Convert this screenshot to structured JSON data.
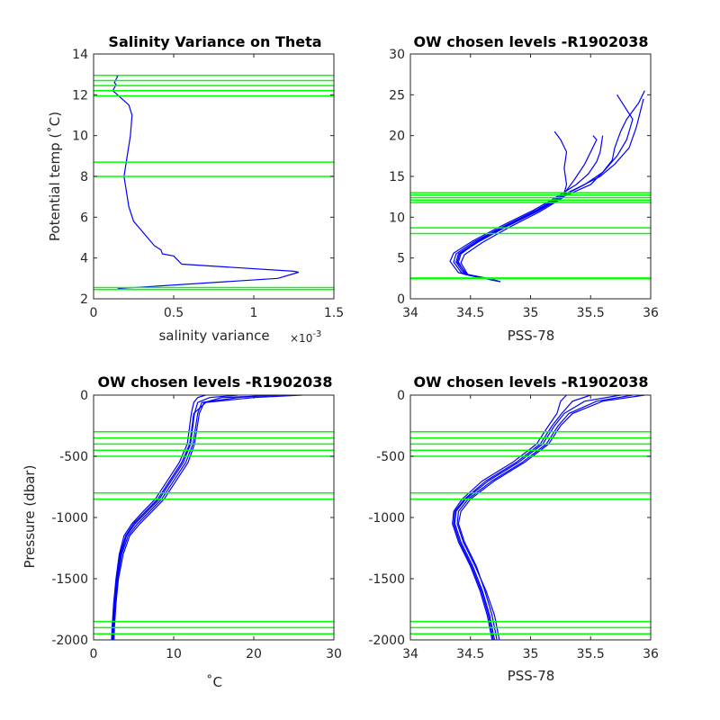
{
  "colors": {
    "profile": "#0000ff",
    "levels": "#00ff00",
    "axis": "#262626"
  },
  "chart_data": [
    {
      "id": "p1",
      "type": "line",
      "title": "Salinity Variance on Theta",
      "xlabel": "salinity variance",
      "x_exponent": "×10",
      "x_exponent_power": "-3",
      "ylabel": "Potential temp (˚C)",
      "xlim": [
        0,
        1.5
      ],
      "ylim": [
        2,
        14
      ],
      "xticks": [
        0,
        0.5,
        1,
        1.5
      ],
      "xticklabels": [
        "0",
        "0.5",
        "1",
        "1.5"
      ],
      "yticks": [
        2,
        4,
        6,
        8,
        10,
        12,
        14
      ],
      "yticklabels": [
        "2",
        "4",
        "6",
        "8",
        "10",
        "12",
        "14"
      ],
      "levels": [
        12.95,
        12.7,
        12.45,
        12.2,
        11.95,
        8.7,
        8.0,
        2.55,
        2.45
      ],
      "series": [
        {
          "x": [
            0.15,
            1.15,
            1.28,
            1.25,
            0.55,
            0.5,
            0.43,
            0.42,
            0.38,
            0.25,
            0.22,
            0.2,
            0.19,
            0.23,
            0.24,
            0.22,
            0.12,
            0.14,
            0.13,
            0.15,
            0.14
          ],
          "y": [
            2.5,
            3.0,
            3.3,
            3.35,
            3.7,
            4.1,
            4.2,
            4.4,
            4.6,
            5.8,
            6.5,
            7.5,
            8.0,
            10.0,
            11.0,
            11.5,
            12.2,
            12.5,
            12.6,
            12.9,
            12.95
          ]
        }
      ]
    },
    {
      "id": "p2",
      "type": "line",
      "title": "OW chosen levels -R1902038",
      "xlabel": "PSS-78",
      "ylabel": "",
      "xlim": [
        34,
        36
      ],
      "ylim": [
        0,
        30
      ],
      "xticks": [
        34,
        34.5,
        35,
        35.5,
        36
      ],
      "xticklabels": [
        "34",
        "34.5",
        "35",
        "35.5",
        "36"
      ],
      "yticks": [
        0,
        5,
        10,
        15,
        20,
        25,
        30
      ],
      "yticklabels": [
        "0",
        "5",
        "10",
        "15",
        "20",
        "25",
        "30"
      ],
      "levels": [
        13.0,
        12.7,
        12.4,
        12.1,
        11.8,
        8.7,
        8.0,
        2.55,
        2.45
      ],
      "series": [
        {
          "x": [
            34.72,
            34.45,
            34.38,
            34.4,
            34.55,
            34.8,
            35.05,
            35.25,
            35.45,
            35.6,
            35.68,
            35.7,
            35.75,
            35.8,
            35.9,
            35.95
          ],
          "y": [
            2.2,
            3.0,
            4.5,
            5.5,
            7.0,
            9.0,
            10.8,
            12.5,
            14.0,
            15.5,
            17.0,
            18.5,
            20.5,
            22.0,
            24.0,
            25.5
          ]
        },
        {
          "x": [
            34.7,
            34.4,
            34.33,
            34.36,
            34.52,
            34.78,
            35.03,
            35.23,
            35.38,
            35.48,
            35.55,
            35.58,
            35.6
          ],
          "y": [
            2.3,
            3.2,
            4.6,
            5.6,
            7.1,
            9.1,
            10.9,
            12.6,
            14.0,
            15.3,
            16.8,
            18.0,
            20.0
          ]
        },
        {
          "x": [
            34.75,
            34.48,
            34.42,
            34.45,
            34.6,
            34.84,
            35.08,
            35.27,
            35.3,
            35.28,
            35.3,
            35.25,
            35.2
          ],
          "y": [
            2.1,
            2.9,
            4.4,
            5.4,
            6.9,
            8.9,
            10.7,
            12.4,
            14.0,
            16.0,
            18.0,
            19.5,
            20.5
          ]
        },
        {
          "x": [
            34.68,
            34.43,
            34.36,
            34.38,
            34.53,
            34.79,
            35.04,
            35.24,
            35.42,
            35.58,
            35.7,
            35.82,
            35.88,
            35.94
          ],
          "y": [
            2.4,
            3.1,
            4.5,
            5.5,
            7.0,
            9.0,
            10.8,
            12.5,
            13.8,
            15.0,
            16.5,
            18.5,
            21.0,
            24.5
          ]
        },
        {
          "x": [
            34.71,
            34.46,
            34.4,
            34.42,
            34.56,
            34.81,
            35.06,
            35.26,
            35.36,
            35.45,
            35.5,
            35.55,
            35.52
          ],
          "y": [
            2.2,
            3.0,
            4.5,
            5.5,
            7.0,
            9.0,
            10.8,
            12.5,
            14.5,
            16.5,
            18.0,
            19.5,
            20.0
          ]
        },
        {
          "x": [
            34.73,
            34.47,
            34.39,
            34.41,
            34.57,
            34.82,
            35.07,
            35.27,
            35.5,
            35.62,
            35.72,
            35.8,
            35.85,
            35.72
          ],
          "y": [
            2.2,
            3.0,
            4.5,
            5.5,
            7.0,
            9.0,
            10.8,
            12.5,
            14.0,
            15.8,
            17.5,
            19.5,
            22.0,
            25.0
          ]
        }
      ]
    },
    {
      "id": "p3",
      "type": "line",
      "title": "OW chosen levels -R1902038",
      "xlabel": "˚C",
      "ylabel": "Pressure (dbar)",
      "xlim": [
        0,
        30
      ],
      "ylim": [
        -2000,
        0
      ],
      "xticks": [
        0,
        10,
        20,
        30
      ],
      "xticklabels": [
        "0",
        "10",
        "20",
        "30"
      ],
      "yticks": [
        -2000,
        -1500,
        -1000,
        -500,
        0
      ],
      "yticklabels": [
        "-2000",
        "-1500",
        "-1000",
        "-500",
        "0"
      ],
      "levels": [
        -300,
        -350,
        -400,
        -450,
        -500,
        -800,
        -850,
        -1850,
        -1900,
        -1950
      ],
      "series": [
        {
          "x": [
            26,
            20,
            14,
            12.5,
            12.0,
            11.0,
            9.5,
            8.0,
            6.5,
            5.0,
            4.0,
            3.3,
            2.9,
            2.6,
            2.4,
            2.35
          ],
          "y": [
            0,
            -20,
            -60,
            -150,
            -400,
            -550,
            -700,
            -850,
            -950,
            -1050,
            -1150,
            -1300,
            -1500,
            -1700,
            -1900,
            -2000
          ]
        },
        {
          "x": [
            22,
            18,
            13.5,
            13.0,
            12.4,
            11.5,
            10.0,
            8.5,
            7.0,
            5.5,
            4.3,
            3.5,
            3.0,
            2.7,
            2.5,
            2.45
          ],
          "y": [
            0,
            -20,
            -60,
            -150,
            -400,
            -550,
            -700,
            -850,
            -950,
            -1050,
            -1150,
            -1300,
            -1500,
            -1700,
            -1900,
            -2000
          ]
        },
        {
          "x": [
            14,
            13,
            12.5,
            12.2,
            11.7,
            10.7,
            9.2,
            7.7,
            6.2,
            4.8,
            3.8,
            3.2,
            2.8,
            2.5,
            2.3,
            2.25
          ],
          "y": [
            0,
            -20,
            -60,
            -150,
            -400,
            -550,
            -700,
            -850,
            -950,
            -1050,
            -1150,
            -1300,
            -1500,
            -1700,
            -1900,
            -2000
          ]
        },
        {
          "x": [
            24,
            16,
            13.8,
            13.2,
            12.6,
            11.8,
            10.3,
            8.8,
            7.3,
            5.8,
            4.5,
            3.7,
            3.1,
            2.8,
            2.6,
            2.55
          ],
          "y": [
            0,
            -20,
            -60,
            -150,
            -400,
            -550,
            -700,
            -850,
            -950,
            -1050,
            -1150,
            -1300,
            -1500,
            -1700,
            -1900,
            -2000
          ]
        },
        {
          "x": [
            18,
            14.5,
            13,
            12.6,
            12.1,
            11.2,
            9.7,
            8.2,
            6.7,
            5.2,
            4.1,
            3.4,
            2.9,
            2.65,
            2.45,
            2.4
          ],
          "y": [
            0,
            -20,
            -60,
            -150,
            -400,
            -550,
            -700,
            -850,
            -950,
            -1050,
            -1150,
            -1300,
            -1500,
            -1700,
            -1900,
            -2000
          ]
        }
      ]
    },
    {
      "id": "p4",
      "type": "line",
      "title": "OW chosen levels -R1902038",
      "xlabel": "PSS-78",
      "ylabel": "",
      "xlim": [
        34,
        36
      ],
      "ylim": [
        -2000,
        0
      ],
      "xticks": [
        34,
        34.5,
        35,
        35.5,
        36
      ],
      "xticklabels": [
        "34",
        "34.5",
        "35",
        "35.5",
        "36"
      ],
      "yticks": [
        -2000,
        -1500,
        -1000,
        -500,
        0
      ],
      "yticklabels": [
        "-2000",
        "-1500",
        "-1000",
        "-500",
        "0"
      ],
      "levels": [
        -300,
        -350,
        -400,
        -450,
        -500,
        -800,
        -850,
        -1850,
        -1900,
        -1950
      ],
      "series": [
        {
          "x": [
            35.95,
            35.6,
            35.35,
            35.25,
            35.15,
            34.95,
            34.7,
            34.5,
            34.42,
            34.4,
            34.45,
            34.55,
            34.62,
            34.68,
            34.72
          ],
          "y": [
            0,
            -50,
            -150,
            -250,
            -400,
            -550,
            -700,
            -850,
            -950,
            -1050,
            -1200,
            -1400,
            -1600,
            -1800,
            -2000
          ]
        },
        {
          "x": [
            35.75,
            35.45,
            35.28,
            35.2,
            35.1,
            34.9,
            34.65,
            34.46,
            34.38,
            34.37,
            34.42,
            34.52,
            34.6,
            34.66,
            34.7
          ],
          "y": [
            0,
            -50,
            -150,
            -250,
            -400,
            -550,
            -700,
            -850,
            -950,
            -1050,
            -1200,
            -1400,
            -1600,
            -1800,
            -2000
          ]
        },
        {
          "x": [
            35.3,
            35.25,
            35.22,
            35.15,
            35.05,
            34.85,
            34.6,
            34.43,
            34.36,
            34.35,
            34.4,
            34.5,
            34.58,
            34.64,
            34.68
          ],
          "y": [
            0,
            -50,
            -150,
            -250,
            -400,
            -550,
            -700,
            -850,
            -950,
            -1050,
            -1200,
            -1400,
            -1600,
            -1800,
            -2000
          ]
        },
        {
          "x": [
            35.85,
            35.55,
            35.32,
            35.23,
            35.13,
            34.93,
            34.68,
            34.48,
            34.4,
            34.39,
            34.44,
            34.54,
            34.63,
            34.7,
            34.74
          ],
          "y": [
            0,
            -50,
            -150,
            -250,
            -400,
            -550,
            -700,
            -850,
            -950,
            -1050,
            -1200,
            -1400,
            -1600,
            -1800,
            -2000
          ]
        },
        {
          "x": [
            35.5,
            35.35,
            35.26,
            35.18,
            35.08,
            34.88,
            34.63,
            34.45,
            34.37,
            34.36,
            34.41,
            34.51,
            34.59,
            34.65,
            34.69
          ],
          "y": [
            0,
            -50,
            -150,
            -250,
            -400,
            -550,
            -700,
            -850,
            -950,
            -1050,
            -1200,
            -1400,
            -1600,
            -1800,
            -2000
          ]
        }
      ]
    }
  ]
}
